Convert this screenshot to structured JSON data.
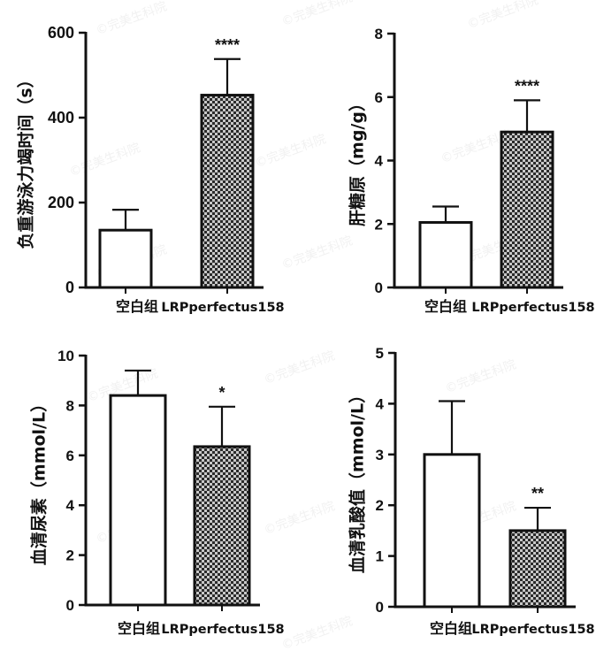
{
  "watermark": "©完美生科院",
  "colors": {
    "axis": "#111111",
    "control_fill": "#ffffff",
    "treatment_pattern_dark": "#2b2b2b",
    "treatment_pattern_light": "#c8c8c8"
  },
  "chart_data": [
    {
      "type": "bar",
      "categories": [
        "空白组",
        "LRPperfectus158"
      ],
      "values": [
        135,
        453
      ],
      "error_upper": [
        183,
        538
      ],
      "significance": [
        "",
        "****"
      ],
      "ylabel": "负重游泳力竭时间（s）",
      "ylim": [
        0,
        600
      ],
      "yticks": [
        0,
        200,
        400,
        600
      ]
    },
    {
      "type": "bar",
      "categories": [
        "空白组",
        "LRPperfectus158"
      ],
      "values": [
        2.05,
        4.9
      ],
      "error_upper": [
        2.55,
        5.9
      ],
      "significance": [
        "",
        "****"
      ],
      "ylabel": "肝糖原（mg/g）",
      "ylim": [
        0,
        8
      ],
      "yticks": [
        0,
        2,
        4,
        6,
        8
      ]
    },
    {
      "type": "bar",
      "categories": [
        "空白组",
        "LRPperfectus158"
      ],
      "values": [
        8.4,
        6.35
      ],
      "error_upper": [
        9.4,
        7.95
      ],
      "significance": [
        "",
        "*"
      ],
      "ylabel": "血清尿素（mmol/L）",
      "ylim": [
        0,
        10
      ],
      "yticks": [
        0,
        2,
        4,
        6,
        8,
        10
      ]
    },
    {
      "type": "bar",
      "categories": [
        "空白组",
        "LRPperfectus158"
      ],
      "values": [
        3.0,
        1.5
      ],
      "error_upper": [
        4.05,
        1.95
      ],
      "significance": [
        "",
        "**"
      ],
      "ylabel": "血清乳酸值（mmol/L）",
      "ylim": [
        0,
        5
      ],
      "yticks": [
        0,
        1,
        2,
        3,
        4,
        5
      ]
    }
  ]
}
